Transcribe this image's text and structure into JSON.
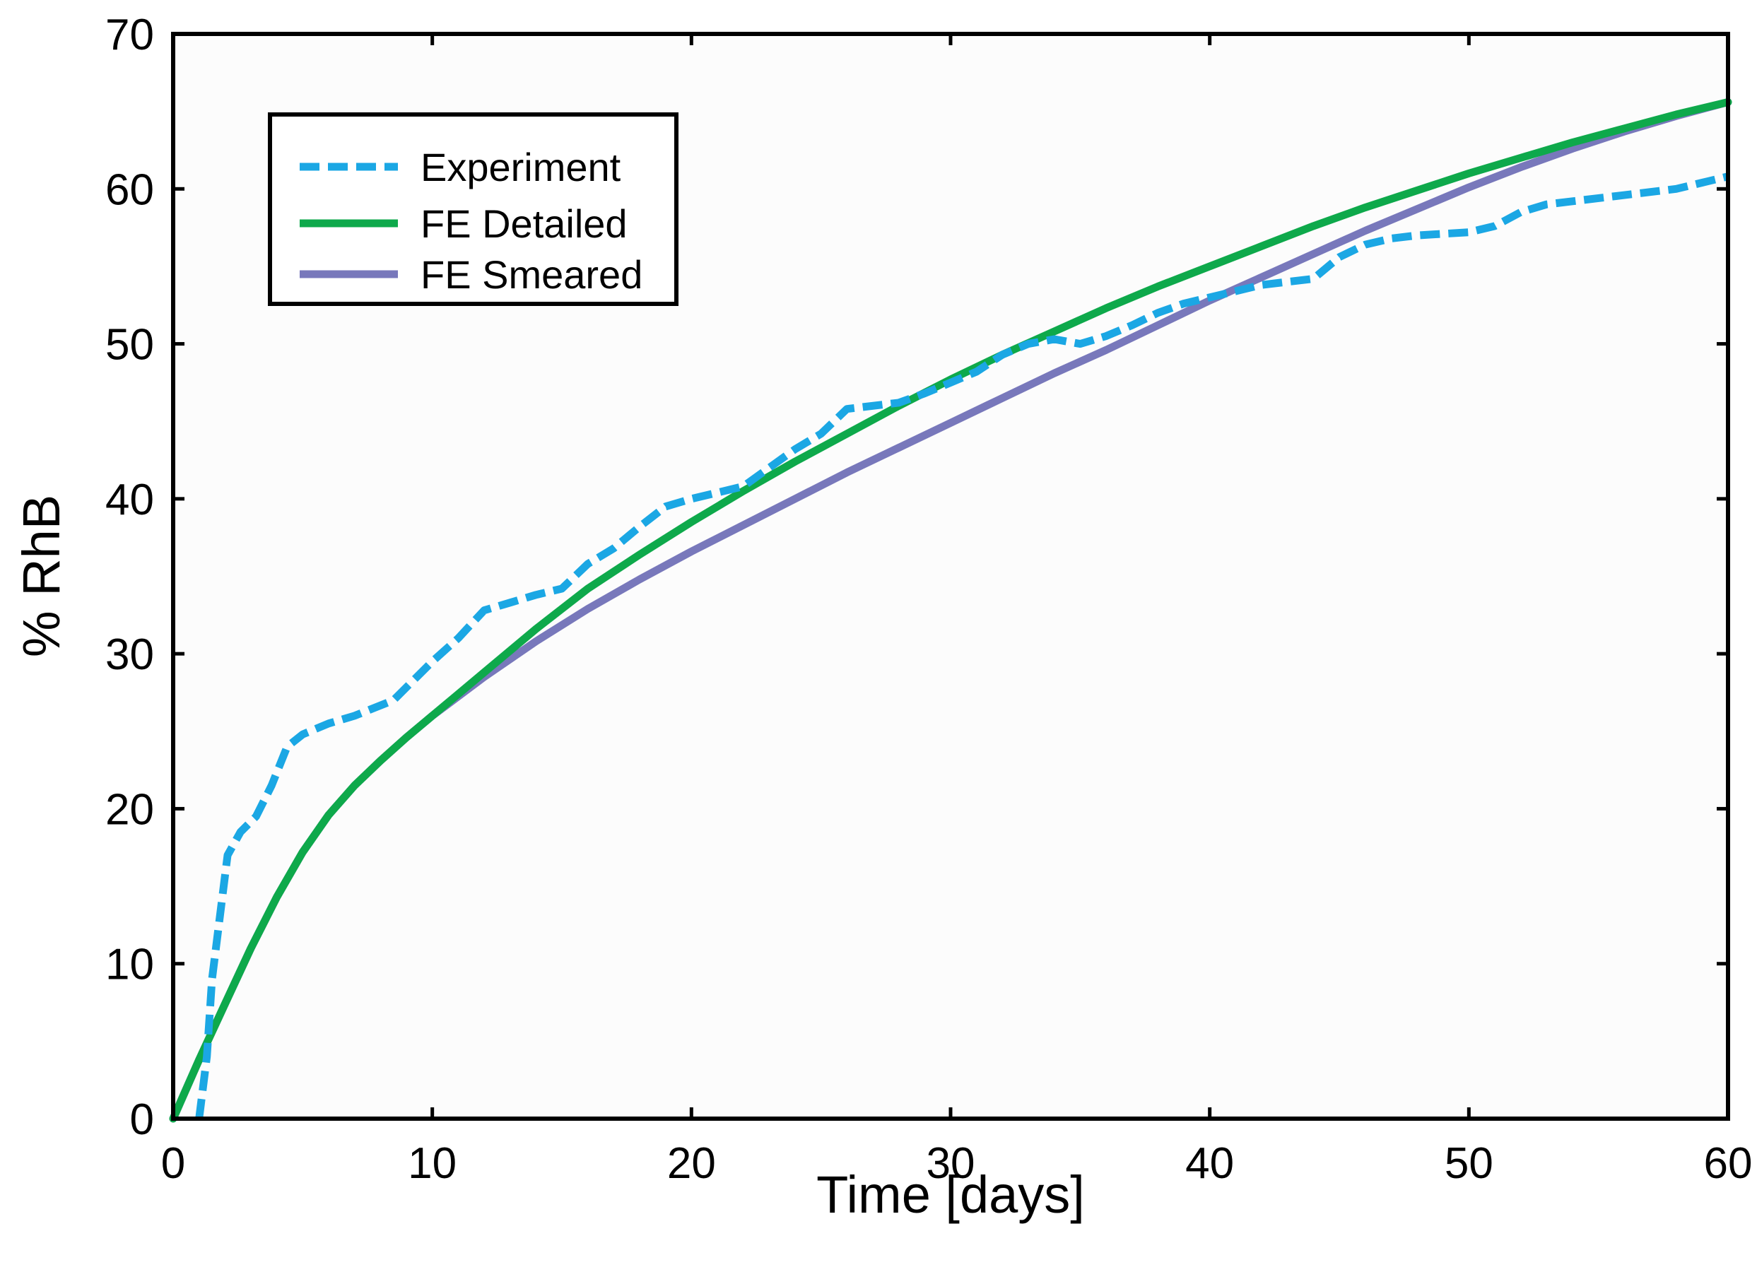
{
  "chart_data": {
    "type": "line",
    "title": "",
    "xlabel": "Time [days]",
    "ylabel": "% RhB",
    "xlim": [
      0,
      60
    ],
    "ylim": [
      0,
      70
    ],
    "xticks": [
      "0",
      "10",
      "20",
      "30",
      "40",
      "50",
      "60"
    ],
    "yticks": [
      "0",
      "10",
      "20",
      "30",
      "40",
      "50",
      "60",
      "70"
    ],
    "grid": false,
    "legend_position": "top-left",
    "series": [
      {
        "name": "Experiment",
        "style": "dashed",
        "color": "#1ba7e4",
        "x": [
          1,
          1.3,
          1.5,
          1.8,
          2.1,
          2.6,
          3.2,
          3.8,
          4.4,
          5,
          6,
          7,
          8.5,
          10,
          11,
          12,
          13,
          14,
          15,
          16,
          17,
          18,
          19,
          20,
          21,
          22,
          23,
          24,
          25,
          26,
          28,
          29,
          30,
          31,
          32,
          33,
          34,
          35,
          36,
          37,
          38,
          39,
          40,
          42,
          44,
          45,
          46,
          47,
          48,
          50,
          51,
          52,
          53,
          54,
          55,
          56,
          57,
          58,
          59,
          60
        ],
        "y": [
          0,
          4,
          9,
          13,
          17,
          18.5,
          19.5,
          21.5,
          24,
          24.8,
          25.5,
          26,
          27,
          29.5,
          31,
          32.8,
          33.3,
          33.8,
          34.2,
          35.8,
          36.8,
          38.2,
          39.5,
          40,
          40.4,
          40.8,
          42,
          43.2,
          44.2,
          45.8,
          46.2,
          46.8,
          47.5,
          48.2,
          49.3,
          50,
          50.3,
          50,
          50.5,
          51.2,
          52,
          52.6,
          53,
          53.8,
          54.2,
          55.6,
          56.4,
          56.8,
          57,
          57.2,
          57.6,
          58.5,
          59,
          59.2,
          59.4,
          59.6,
          59.8,
          60,
          60.4,
          60.8
        ]
      },
      {
        "name": "FE Detailed",
        "style": "solid",
        "color": "#0ea94b",
        "x": [
          0,
          1,
          2,
          3,
          4,
          5,
          6,
          7,
          8,
          9,
          10,
          12,
          14,
          16,
          18,
          20,
          22,
          24,
          26,
          28,
          30,
          32,
          34,
          36,
          38,
          40,
          42,
          44,
          46,
          48,
          50,
          52,
          54,
          56,
          58,
          60
        ],
        "y": [
          0,
          3.8,
          7.4,
          11,
          14.3,
          17.2,
          19.6,
          21.5,
          23.1,
          24.6,
          26,
          28.8,
          31.6,
          34.2,
          36.4,
          38.5,
          40.5,
          42.4,
          44.2,
          46.0,
          47.7,
          49.3,
          50.8,
          52.3,
          53.7,
          55.0,
          56.3,
          57.6,
          58.8,
          59.9,
          61.0,
          62.0,
          63.0,
          63.9,
          64.8,
          65.6
        ]
      },
      {
        "name": "FE Smeared",
        "style": "solid",
        "color": "#7878bb",
        "x": [
          0,
          1,
          2,
          3,
          4,
          5,
          6,
          7,
          8,
          9,
          10,
          12,
          14,
          16,
          18,
          20,
          22,
          24,
          26,
          28,
          30,
          32,
          34,
          36,
          38,
          40,
          42,
          44,
          46,
          48,
          50,
          52,
          54,
          56,
          58,
          60
        ],
        "y": [
          0,
          3.8,
          7.4,
          11,
          14.3,
          17.2,
          19.6,
          21.5,
          23.1,
          24.6,
          26,
          28.5,
          30.8,
          32.9,
          34.8,
          36.6,
          38.3,
          40.0,
          41.7,
          43.3,
          44.9,
          46.5,
          48.1,
          49.6,
          51.2,
          52.8,
          54.3,
          55.8,
          57.3,
          58.7,
          60.1,
          61.4,
          62.6,
          63.7,
          64.7,
          65.6
        ]
      }
    ]
  },
  "legend": {
    "items": [
      {
        "label": "Experiment",
        "color": "#1ba7e4",
        "style": "dashed"
      },
      {
        "label": "FE Detailed",
        "color": "#0ea94b",
        "style": "solid"
      },
      {
        "label": "FE Smeared",
        "color": "#7878bb",
        "style": "solid"
      }
    ]
  }
}
